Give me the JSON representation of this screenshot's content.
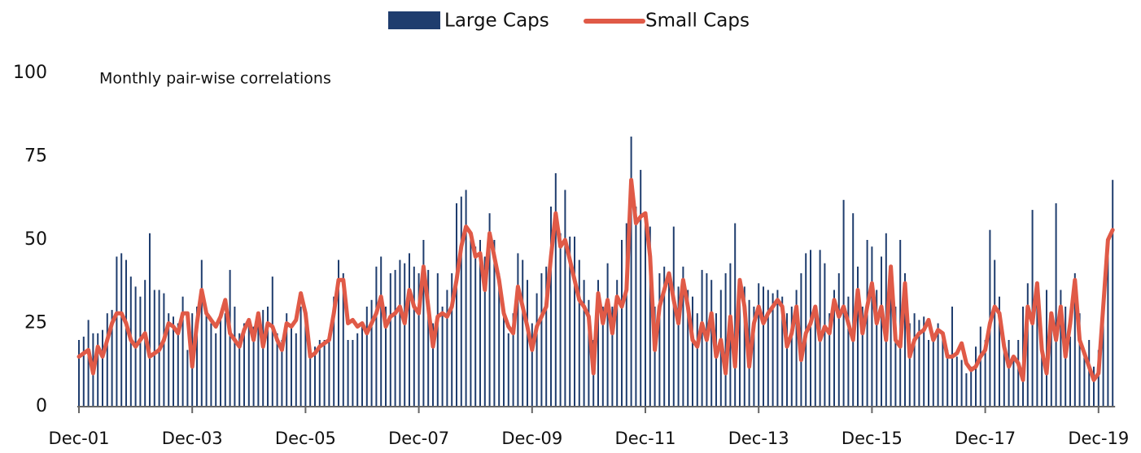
{
  "chart_data": {
    "type": "bar",
    "title": "Monthly pair-wise correlations",
    "categories": [
      "Dec-01",
      null,
      null,
      null,
      null,
      null,
      null,
      null,
      null,
      null,
      null,
      null,
      null,
      null,
      null,
      null,
      null,
      null,
      null,
      null,
      null,
      null,
      null,
      null,
      "Dec-03",
      null,
      null,
      null,
      null,
      null,
      null,
      null,
      null,
      null,
      null,
      null,
      null,
      null,
      null,
      null,
      null,
      null,
      null,
      null,
      null,
      null,
      null,
      null,
      "Dec-05",
      null,
      null,
      null,
      null,
      null,
      null,
      null,
      null,
      null,
      null,
      null,
      null,
      null,
      null,
      null,
      null,
      null,
      null,
      null,
      null,
      null,
      null,
      null,
      "Dec-07",
      null,
      null,
      null,
      null,
      null,
      null,
      null,
      null,
      null,
      null,
      null,
      null,
      null,
      null,
      null,
      null,
      null,
      null,
      null,
      null,
      null,
      null,
      null,
      "Dec-09",
      null,
      null,
      null,
      null,
      null,
      null,
      null,
      null,
      null,
      null,
      null,
      null,
      null,
      null,
      null,
      null,
      null,
      null,
      null,
      null,
      null,
      null,
      null,
      "Dec-11",
      null,
      null,
      null,
      null,
      null,
      null,
      null,
      null,
      null,
      null,
      null,
      null,
      null,
      null,
      null,
      null,
      null,
      null,
      null,
      null,
      null,
      null,
      null,
      "Dec-13",
      null,
      null,
      null,
      null,
      null,
      null,
      null,
      null,
      null,
      null,
      null,
      null,
      null,
      null,
      null,
      null,
      null,
      null,
      null,
      null,
      null,
      null,
      null,
      "Dec-15",
      null,
      null,
      null,
      null,
      null,
      null,
      null,
      null,
      null,
      null,
      null,
      null,
      null,
      null,
      null,
      null,
      null,
      null,
      null,
      null,
      null,
      null,
      null,
      "Dec-17",
      null,
      null,
      null,
      null,
      null,
      null,
      null,
      null,
      null,
      null,
      null,
      null,
      null,
      null,
      null,
      null,
      null,
      null,
      null,
      null,
      null,
      null,
      null,
      "Dec-19",
      null,
      null,
      null
    ],
    "series": [
      {
        "name": "Large Caps",
        "type": "bar",
        "color": "#1f3d6e",
        "values": [
          20,
          21,
          26,
          22,
          22,
          23,
          28,
          29,
          45,
          46,
          44,
          39,
          36,
          33,
          38,
          52,
          35,
          35,
          34,
          28,
          27,
          25,
          33,
          17,
          28,
          30,
          44,
          28,
          25,
          22,
          27,
          28,
          41,
          30,
          22,
          25,
          26,
          24,
          28,
          29,
          30,
          39,
          22,
          20,
          28,
          24,
          22,
          30,
          25,
          17,
          18,
          20,
          20,
          22,
          33,
          44,
          40,
          20,
          20,
          22,
          24,
          30,
          32,
          42,
          45,
          30,
          40,
          41,
          44,
          43,
          46,
          42,
          40,
          50,
          41,
          25,
          40,
          30,
          35,
          40,
          61,
          63,
          65,
          52,
          48,
          50,
          45,
          58,
          50,
          40,
          30,
          22,
          28,
          46,
          44,
          38,
          25,
          34,
          40,
          42,
          60,
          70,
          52,
          65,
          51,
          51,
          44,
          38,
          32,
          20,
          38,
          30,
          43,
          30,
          38,
          50,
          55,
          81,
          60,
          71,
          58,
          54,
          30,
          40,
          42,
          40,
          54,
          36,
          42,
          35,
          33,
          28,
          41,
          40,
          38,
          28,
          35,
          40,
          43,
          55,
          38,
          36,
          32,
          30,
          37,
          36,
          35,
          34,
          35,
          33,
          28,
          30,
          35,
          40,
          46,
          47,
          30,
          47,
          43,
          28,
          35,
          40,
          62,
          33,
          58,
          42,
          30,
          50,
          48,
          35,
          45,
          52,
          40,
          30,
          50,
          40,
          25,
          28,
          26,
          27,
          20,
          22,
          25,
          22,
          17,
          30,
          15,
          14,
          10,
          12,
          18,
          24,
          20,
          53,
          44,
          33,
          18,
          20,
          15,
          20,
          30,
          37,
          59,
          35,
          20,
          35,
          25,
          61,
          35,
          30,
          21,
          40,
          28,
          17,
          20,
          12,
          17,
          29,
          49,
          68
        ]
      },
      {
        "name": "Small Caps",
        "type": "line",
        "color": "#e05a47",
        "values": [
          15,
          16,
          17,
          10,
          18,
          15,
          20,
          25,
          28,
          28,
          25,
          20,
          18,
          20,
          22,
          15,
          16,
          17,
          20,
          25,
          24,
          22,
          28,
          28,
          12,
          25,
          35,
          28,
          26,
          24,
          27,
          32,
          22,
          20,
          18,
          23,
          26,
          20,
          28,
          18,
          25,
          24,
          20,
          17,
          25,
          24,
          26,
          34,
          28,
          15,
          16,
          18,
          19,
          20,
          28,
          38,
          38,
          25,
          26,
          24,
          25,
          22,
          25,
          28,
          33,
          24,
          27,
          28,
          30,
          25,
          35,
          30,
          28,
          42,
          30,
          18,
          27,
          28,
          27,
          30,
          38,
          48,
          54,
          52,
          45,
          46,
          35,
          52,
          45,
          38,
          28,
          24,
          22,
          36,
          30,
          24,
          17,
          24,
          27,
          30,
          45,
          58,
          48,
          50,
          44,
          38,
          32,
          30,
          27,
          10,
          34,
          25,
          32,
          22,
          33,
          30,
          35,
          68,
          55,
          57,
          58,
          45,
          17,
          30,
          35,
          40,
          32,
          25,
          38,
          30,
          20,
          18,
          25,
          20,
          28,
          15,
          20,
          10,
          27,
          12,
          38,
          30,
          12,
          25,
          30,
          25,
          28,
          30,
          32,
          30,
          18,
          22,
          30,
          14,
          22,
          25,
          30,
          20,
          24,
          22,
          32,
          27,
          30,
          25,
          20,
          35,
          22,
          30,
          37,
          25,
          30,
          20,
          42,
          20,
          18,
          37,
          15,
          20,
          22,
          23,
          26,
          20,
          23,
          22,
          15,
          15,
          16,
          19,
          13,
          11,
          12,
          15,
          17,
          25,
          30,
          28,
          18,
          12,
          15,
          13,
          8,
          30,
          25,
          37,
          17,
          10,
          28,
          20,
          30,
          15,
          25,
          38,
          20,
          16,
          12,
          8,
          10,
          30,
          50,
          53
        ]
      }
    ],
    "ylim": [
      0,
      100
    ],
    "yticks": [
      0,
      25,
      50,
      75,
      100
    ],
    "grid": false,
    "legend": "top"
  }
}
